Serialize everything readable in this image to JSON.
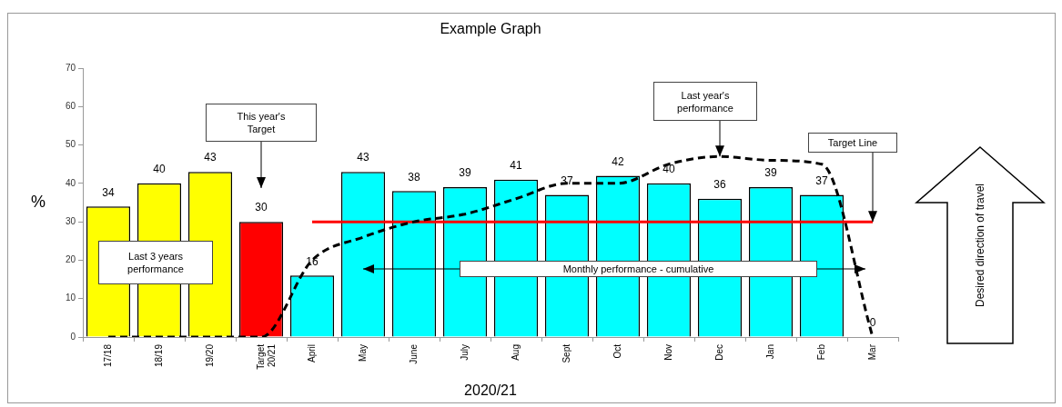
{
  "chart_data": {
    "type": "bar",
    "title": "Example Graph",
    "xlabel": "2020/21",
    "ylabel": "%",
    "categories": [
      "17/18",
      "18/19",
      "19/20",
      "Target 20/21",
      "April",
      "May",
      "June",
      "July",
      "Aug",
      "Sept",
      "Oct",
      "Nov",
      "Dec",
      "Jan",
      "Feb",
      "Mar"
    ],
    "series": [
      {
        "colors": [
          "#ffff00",
          "#ffff00",
          "#ffff00",
          "#ff0000",
          "#00ffff",
          "#00ffff",
          "#00ffff",
          "#00ffff",
          "#00ffff",
          "#00ffff",
          "#00ffff",
          "#00ffff",
          "#00ffff",
          "#00ffff",
          "#00ffff",
          "#00ffff"
        ],
        "values": [
          34,
          40,
          43,
          30,
          16,
          43,
          38,
          39,
          41,
          37,
          42,
          40,
          36,
          39,
          37,
          0
        ],
        "value_labels": [
          "34",
          "40",
          "43",
          "30",
          "16",
          "43",
          "38",
          "39",
          "41",
          "37",
          "42",
          "40",
          "36",
          "39",
          "37",
          "0"
        ]
      },
      {
        "type": "line",
        "color": "#000000",
        "line_style": "dashed",
        "marker": "none",
        "values": [
          0,
          0,
          0,
          0,
          20,
          26,
          30,
          32,
          36,
          40,
          40,
          45,
          47,
          46,
          45,
          0
        ]
      },
      {
        "type": "line",
        "color": "#ff0000",
        "line_style": "solid",
        "marker": "none",
        "values": [
          null,
          null,
          null,
          null,
          30,
          30,
          30,
          30,
          30,
          30,
          30,
          30,
          30,
          30,
          30,
          30
        ]
      }
    ],
    "ylim": [
      0,
      70
    ],
    "yticks": [
      0,
      10,
      20,
      30,
      40,
      50,
      60,
      70
    ],
    "grid": false,
    "legend": false,
    "annotations": [
      "This year's Target",
      "Last 3 years performance",
      {
        "text": "Last year's performance",
        "x": "Dec",
        "y": 47
      },
      {
        "text": "Target Line",
        "x": "Mar",
        "y": 30
      },
      "Monthly performance - cumulative",
      "Desired direction of travel"
    ]
  }
}
